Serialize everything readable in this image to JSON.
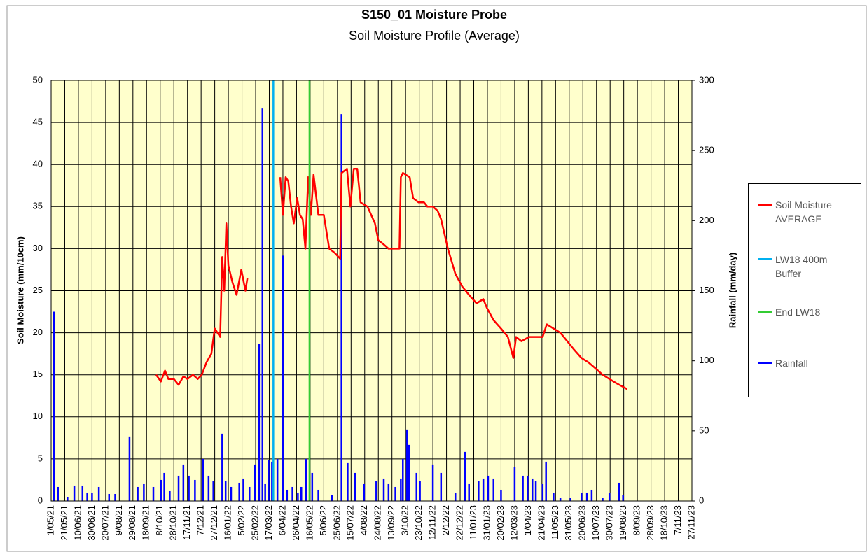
{
  "chart_data": {
    "type": "line",
    "title": "S150_01 Moisture Probe",
    "subtitle": "Soil Moisture Profile (Average)",
    "ylabel": "Soil Moisture (mm/10cm)",
    "y2label": "Rainfall (mm/day)",
    "ylim": [
      0,
      50
    ],
    "yticks": [
      0,
      5,
      10,
      15,
      20,
      25,
      30,
      35,
      40,
      45,
      50
    ],
    "y2lim": [
      0,
      300
    ],
    "y2ticks": [
      0,
      50,
      100,
      150,
      200,
      250,
      300
    ],
    "xlim": [
      "1/05/21",
      "27/11/23"
    ],
    "xticks": [
      "1/05/21",
      "21/05/21",
      "10/06/21",
      "30/06/21",
      "20/07/21",
      "9/08/21",
      "29/08/21",
      "18/09/21",
      "8/10/21",
      "28/10/21",
      "17/11/21",
      "7/12/21",
      "27/12/21",
      "16/01/22",
      "5/02/22",
      "25/02/22",
      "17/03/22",
      "6/04/22",
      "26/04/22",
      "16/05/22",
      "5/06/22",
      "25/06/22",
      "15/07/22",
      "4/08/22",
      "24/08/22",
      "13/09/22",
      "3/10/22",
      "23/10/22",
      "12/11/22",
      "2/12/22",
      "22/12/22",
      "11/01/23",
      "31/01/23",
      "20/02/23",
      "12/03/23",
      "1/04/23",
      "21/04/23",
      "11/05/23",
      "31/05/23",
      "20/06/23",
      "10/07/23",
      "30/07/23",
      "19/08/23",
      "8/09/23",
      "28/09/23",
      "18/10/23",
      "7/11/23",
      "27/11/23"
    ],
    "grid": true,
    "legend": "right",
    "series": [
      {
        "name": "Soil Moisture AVERAGE",
        "color": "#ff0000",
        "kind": "line",
        "x": [
          "2/10/21",
          "9/10/21",
          "15/10/21",
          "20/10/21",
          "28/10/21",
          "4/11/21",
          "11/11/21",
          "17/11/21",
          "25/11/21",
          "2/12/21",
          "8/12/21",
          "15/12/21",
          "22/12/21",
          "27/12/21",
          "4/01/22",
          "7/01/22",
          "10/01/22",
          "13/01/22",
          "16/01/22",
          "22/01/22",
          "28/01/22",
          "4/02/22",
          "10/02/22",
          "13/02/22",
          "1/03/22",
          "2/04/22",
          "6/04/22",
          "10/04/22",
          "14/04/22",
          "18/04/22",
          "22/04/22",
          "27/04/22",
          "1/05/22",
          "5/05/22",
          "9/05/22",
          "13/05/22",
          "17/05/22",
          "21/05/22",
          "28/05/22",
          "5/06/22",
          "13/06/22",
          "21/06/22",
          "29/06/22",
          "1/07/22",
          "9/07/22",
          "14/07/22",
          "19/07/22",
          "24/07/22",
          "29/07/22",
          "8/08/22",
          "19/08/22",
          "24/08/22",
          "1/09/22",
          "8/09/22",
          "15/09/22",
          "24/09/22",
          "26/09/22",
          "29/09/22",
          "9/10/22",
          "14/10/22",
          "22/10/22",
          "30/10/22",
          "4/11/22",
          "12/11/22",
          "19/11/22",
          "24/11/22",
          "4/12/22",
          "15/12/22",
          "25/12/22",
          "4/01/23",
          "15/01/23",
          "25/01/23",
          "30/01/23",
          "9/02/23",
          "20/02/23",
          "2/03/23",
          "10/03/23",
          "14/03/23",
          "22/03/23",
          "2/04/23",
          "12/04/23",
          "22/04/23",
          "28/04/23",
          "8/05/23",
          "18/05/23",
          "28/05/23",
          "7/06/23",
          "18/06/23",
          "28/06/23",
          "8/07/23",
          "19/07/23",
          "29/07/23",
          "8/08/23",
          "24/08/23"
        ],
        "values": [
          15,
          14.2,
          15.5,
          14.5,
          14.5,
          13.8,
          14.8,
          14.5,
          15,
          14.5,
          15,
          16.5,
          17.5,
          20.5,
          19.5,
          29,
          25,
          33,
          28,
          26,
          24.5,
          27.5,
          25,
          26.5,
          null,
          38.5,
          34,
          38.5,
          38,
          35,
          33,
          36,
          34,
          33.5,
          30,
          38.5,
          34,
          38.8,
          34,
          34,
          30,
          29.5,
          28.8,
          39,
          39.5,
          35,
          39.5,
          39.5,
          35.5,
          35,
          33,
          31,
          30.5,
          30,
          30,
          30,
          38.5,
          39,
          38.5,
          36,
          35.5,
          35.5,
          35,
          35,
          34.5,
          33.5,
          30,
          27,
          25.5,
          24.5,
          23.5,
          24,
          23,
          21.5,
          20.5,
          19.5,
          17,
          19.5,
          19,
          19.5,
          19.5,
          19.5,
          21,
          20.5,
          20,
          19,
          18,
          17,
          16.5,
          15.8,
          15,
          14.5,
          14,
          13.3
        ]
      },
      {
        "name": "LW18 400m Buffer",
        "color": "#00b0f0",
        "kind": "vline",
        "x": "23/03/22"
      },
      {
        "name": "End LW18",
        "color": "#33cc33",
        "kind": "vline",
        "x": "15/05/22"
      },
      {
        "name": "Rainfall",
        "color": "#0000ff",
        "kind": "spike",
        "axis": "y2",
        "x": [
          "5/05/21",
          "11/05/21",
          "25/05/21",
          "4/06/21",
          "16/06/21",
          "23/06/21",
          "30/06/21",
          "10/07/21",
          "25/07/21",
          "3/08/21",
          "24/08/21",
          "5/09/21",
          "14/09/21",
          "28/09/21",
          "9/10/21",
          "14/10/21",
          "22/10/21",
          "4/11/21",
          "11/11/21",
          "19/11/21",
          "28/11/21",
          "10/12/21",
          "18/12/21",
          "25/12/21",
          "7/01/22",
          "12/01/22",
          "20/01/22",
          "1/02/22",
          "7/02/22",
          "16/02/22",
          "24/02/22",
          "2/03/22",
          "7/03/22",
          "11/03/22",
          "16/03/22",
          "21/03/22",
          "29/03/22",
          "6/04/22",
          "12/04/22",
          "20/04/22",
          "28/04/22",
          "3/05/22",
          "10/05/22",
          "19/05/22",
          "28/05/22",
          "17/06/22",
          "1/07/22",
          "10/07/22",
          "21/07/22",
          "3/08/22",
          "21/08/22",
          "1/09/22",
          "8/09/22",
          "18/09/22",
          "26/09/22",
          "29/09/22",
          "5/10/22",
          "8/10/22",
          "19/10/22",
          "24/10/22",
          "12/11/22",
          "24/11/22",
          "15/12/22",
          "29/12/22",
          "4/01/23",
          "18/01/23",
          "25/01/23",
          "1/02/23",
          "9/02/23",
          "20/02/23",
          "12/03/23",
          "24/03/23",
          "31/03/23",
          "7/04/23",
          "12/04/23",
          "22/04/23",
          "27/04/23",
          "8/05/23",
          "18/05/23",
          "2/06/23",
          "18/06/23",
          "26/06/23",
          "3/07/23",
          "19/07/23",
          "29/07/23",
          "12/08/23",
          "18/08/23"
        ],
        "values": [
          135,
          10,
          3,
          11,
          11,
          6,
          6,
          10,
          5,
          5,
          46,
          10,
          12,
          10,
          15,
          20,
          7,
          18,
          26,
          18,
          15,
          30,
          18,
          14,
          48,
          14,
          10,
          13,
          16,
          10,
          26,
          112,
          280,
          12,
          29,
          28,
          30,
          175,
          8,
          10,
          6,
          10,
          30,
          20,
          8,
          4,
          276,
          27,
          20,
          12,
          14,
          16,
          12,
          10,
          16,
          30,
          51,
          40,
          20,
          14,
          26,
          20,
          6,
          35,
          12,
          14,
          16,
          18,
          16,
          8,
          24,
          18,
          18,
          16,
          14,
          12,
          28,
          6,
          2,
          2,
          6,
          6,
          8,
          2,
          6,
          13,
          4
        ]
      }
    ]
  }
}
